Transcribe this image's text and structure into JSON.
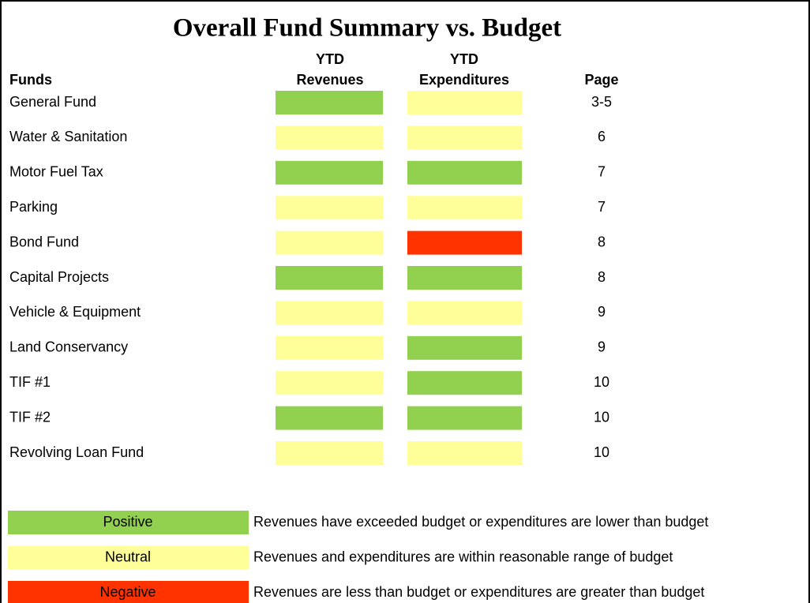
{
  "header": {
    "title": "Overall Fund Summary vs. Budget",
    "columns": [
      "Funds",
      "YTD",
      "Revenues",
      "YTD",
      "Expenditures",
      "Page"
    ]
  },
  "table": {
    "rows": [
      {
        "fund": "General Fund",
        "revenues": "Positive",
        "expenditures": "Neutral",
        "page": "3-5"
      },
      {
        "fund": "Water & Sanitation",
        "revenues": "Neutral",
        "expenditures": "Neutral",
        "page": "6"
      },
      {
        "fund": "Motor Fuel Tax",
        "revenues": "Positive",
        "expenditures": "Positive",
        "page": "7"
      },
      {
        "fund": "Parking",
        "revenues": "Neutral",
        "expenditures": "Neutral",
        "page": "7"
      },
      {
        "fund": "Bond Fund",
        "revenues": "Neutral",
        "expenditures": "Negative",
        "page": "8"
      },
      {
        "fund": "Capital Projects",
        "revenues": "Positive",
        "expenditures": "Positive",
        "page": "8"
      },
      {
        "fund": "Vehicle & Equipment",
        "revenues": "Neutral",
        "expenditures": "Neutral",
        "page": "9"
      },
      {
        "fund": "Land Conservancy",
        "revenues": "Neutral",
        "expenditures": "Positive",
        "page": "9"
      },
      {
        "fund": "TIF #1",
        "revenues": "Neutral",
        "expenditures": "Positive",
        "page": "10"
      },
      {
        "fund": "TIF #2",
        "revenues": "Positive",
        "expenditures": "Positive",
        "page": "10"
      },
      {
        "fund": "Revolving Loan Fund",
        "revenues": "Neutral",
        "expenditures": "Neutral",
        "page": "10"
      }
    ]
  },
  "legend": [
    {
      "label": "Positive",
      "color": "#92d050",
      "description": "Revenues have exceeded budget or expenditures are lower than budget"
    },
    {
      "label": "Neutral",
      "color": "#ffff99",
      "description": "Revenues and expenditures are within reasonable range of budget"
    },
    {
      "label": "Negative",
      "color": "#ff3300",
      "description": "Revenues are less than budget or expenditures are greater than budget"
    }
  ]
}
